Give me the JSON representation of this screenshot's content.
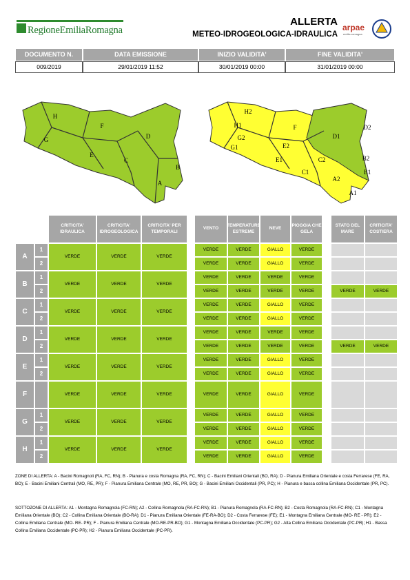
{
  "header": {
    "logo": "RegioneEmiliaRomagna",
    "title": "ALLERTA",
    "subtitle": "METEO-IDROGEOLOGICA-IDRAULICA",
    "arpae": "arpae",
    "arpae_sub": "emilia-romagna"
  },
  "document_table": {
    "columns": [
      "DOCUMENTO N.",
      "DATA EMISSIONE",
      "INIZIO VALIDITA'",
      "FINE VALIDITA'"
    ],
    "values": [
      "009/2019",
      "29/01/2019 11:52",
      "30/01/2019 00:00",
      "31/01/2019 00:00"
    ]
  },
  "maps": {
    "left_labels": [
      "H",
      "G",
      "F",
      "E",
      "C",
      "D",
      "B",
      "A"
    ],
    "right_labels": [
      "H2",
      "H1",
      "G2",
      "G1",
      "F",
      "E2",
      "E1",
      "C2",
      "C1",
      "D1",
      "D2",
      "B2",
      "B1",
      "A2",
      "A1"
    ]
  },
  "colors": {
    "VERDE": "#9ccc2c",
    "GIALLO": "#ffff33"
  },
  "table": {
    "headers_idro": [
      "CRITICITA' IDRAULICA",
      "CRITICITA' IDROGEOLOGICA",
      "CRITICITA' PER TEMPORALI"
    ],
    "headers_meteo": [
      "VENTO",
      "TEMPERATURE ESTREME",
      "NEVE",
      "PIOGGIA CHE GELA"
    ],
    "headers_costa": [
      "STATO DEL MARE",
      "CRITICITA' COSTIERA"
    ],
    "zones": [
      {
        "zone": "A",
        "subzones": [
          "1",
          "2"
        ],
        "idro": [
          "VERDE",
          "VERDE",
          "VERDE"
        ],
        "meteo": [
          [
            "VERDE",
            "VERDE",
            "GIALLO",
            "VERDE"
          ],
          [
            "VERDE",
            "VERDE",
            "GIALLO",
            "VERDE"
          ]
        ],
        "costa": [
          null,
          null
        ]
      },
      {
        "zone": "B",
        "subzones": [
          "1",
          "2"
        ],
        "idro": [
          "VERDE",
          "VERDE",
          "VERDE"
        ],
        "meteo": [
          [
            "VERDE",
            "VERDE",
            "VERDE",
            "VERDE"
          ],
          [
            "VERDE",
            "VERDE",
            "VERDE",
            "VERDE"
          ]
        ],
        "costa": [
          null,
          [
            "VERDE",
            "VERDE"
          ]
        ]
      },
      {
        "zone": "C",
        "subzones": [
          "1",
          "2"
        ],
        "idro": [
          "VERDE",
          "VERDE",
          "VERDE"
        ],
        "meteo": [
          [
            "VERDE",
            "VERDE",
            "GIALLO",
            "VERDE"
          ],
          [
            "VERDE",
            "VERDE",
            "GIALLO",
            "VERDE"
          ]
        ],
        "costa": [
          null,
          null
        ]
      },
      {
        "zone": "D",
        "subzones": [
          "1",
          "2"
        ],
        "idro": [
          "VERDE",
          "VERDE",
          "VERDE"
        ],
        "meteo": [
          [
            "VERDE",
            "VERDE",
            "VERDE",
            "VERDE"
          ],
          [
            "VERDE",
            "VERDE",
            "VERDE",
            "VERDE"
          ]
        ],
        "costa": [
          null,
          [
            "VERDE",
            "VERDE"
          ]
        ]
      },
      {
        "zone": "E",
        "subzones": [
          "1",
          "2"
        ],
        "idro": [
          "VERDE",
          "VERDE",
          "VERDE"
        ],
        "meteo": [
          [
            "VERDE",
            "VERDE",
            "GIALLO",
            "VERDE"
          ],
          [
            "VERDE",
            "VERDE",
            "GIALLO",
            "VERDE"
          ]
        ],
        "costa": [
          null,
          null
        ]
      },
      {
        "zone": "F",
        "subzones": [],
        "idro": [
          "VERDE",
          "VERDE",
          "VERDE"
        ],
        "meteo": [
          [
            "VERDE",
            "VERDE",
            "GIALLO",
            "VERDE"
          ]
        ],
        "costa": [
          null
        ]
      },
      {
        "zone": "G",
        "subzones": [
          "1",
          "2"
        ],
        "idro": [
          "VERDE",
          "VERDE",
          "VERDE"
        ],
        "meteo": [
          [
            "VERDE",
            "VERDE",
            "GIALLO",
            "VERDE"
          ],
          [
            "VERDE",
            "VERDE",
            "GIALLO",
            "VERDE"
          ]
        ],
        "costa": [
          null,
          null
        ]
      },
      {
        "zone": "H",
        "subzones": [
          "1",
          "2"
        ],
        "idro": [
          "VERDE",
          "VERDE",
          "VERDE"
        ],
        "meteo": [
          [
            "VERDE",
            "VERDE",
            "GIALLO",
            "VERDE"
          ],
          [
            "VERDE",
            "VERDE",
            "GIALLO",
            "VERDE"
          ]
        ],
        "costa": [
          null,
          null
        ]
      }
    ]
  },
  "notes": [
    "ZONE DI ALLERTA: A - Bacini Romagnoli (RA, FC, RN); B - Pianura e costa Romagna (RA, FC, RN); C - Bacini Emiliani Orientali (BO, RA); D - Pianura Emiliana Orientale e costa Ferrarese (FE, RA, BO); E - Bacini Emiliani Centrali (MO, RE, PR); F - Pianura Emiliana Centrale (MO, RE, PR, BO); G - Bacini Emiliani Occidentali (PR, PC); H - Pianura e bassa collina Emiliana Occidentale (PR, PC).",
    "SOTTOZONE DI ALLERTA: A1 - Montagna Romagnola (FC-RN); A2 - Collina Romagnola (RA-FC-RN); B1 - Pianura Romagnola (RA-FC-RN); B2 - Costa Romagnola (RA-FC-RN); C1 - Montagna Emiliana Orientale (BO); C2 - Collina Emiliana Orientale (BO-RA); D1 - Pianura Emiliana Orientale (FE-RA-BO); D2 - Costa Ferrarese (FE); E1 - Montagna Emiliana Centrale (MO- RE - PR); E2 - Collina Emiliana Centrale (MO- RE- PR); F - Pianura Emiliana Centrale (MO-RE-PR-BO); G1 - Montagna Emiliana Occidentale (PC-PR); G2 - Alta Collina Emiliana Occidentale (PC-PR); H1 - Bassa Collina Emiliana Occidentale (PC-PR); H2 - Pianura Emiliana Occidentale (PC-PR)."
  ]
}
